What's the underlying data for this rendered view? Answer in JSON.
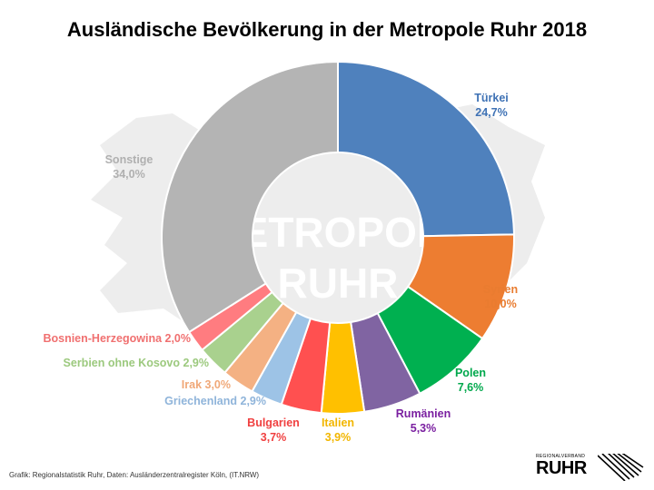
{
  "chart_data": {
    "type": "pie",
    "variant": "donut",
    "title": "Ausländische Bevölkerung in der Metropole Ruhr 2018",
    "center_text": [
      "METROPOLE",
      "RUHR"
    ],
    "unit": "%",
    "slices": [
      {
        "label": "Türkei",
        "value": 24.7,
        "value_text": "24,7%",
        "color": "#4F81BD",
        "label_color": "#3F72B5"
      },
      {
        "label": "Syrien",
        "value": 10.0,
        "value_text": "10,0%",
        "color": "#ED7D31",
        "label_color": "#E97C30"
      },
      {
        "label": "Polen",
        "value": 7.6,
        "value_text": "7,6%",
        "color": "#00B050",
        "label_color": "#00A84C"
      },
      {
        "label": "Rumänien",
        "value": 5.3,
        "value_text": "5,3%",
        "color": "#8064A2",
        "label_color": "#7A1FA0"
      },
      {
        "label": "Italien",
        "value": 3.9,
        "value_text": "3,9%",
        "color": "#FFC000",
        "label_color": "#F2B600"
      },
      {
        "label": "Bulgarien",
        "value": 3.7,
        "value_text": "3,7%",
        "color": "#FF5050",
        "label_color": "#F04040"
      },
      {
        "label": "Griechenland",
        "value": 2.9,
        "value_text": "2,9%",
        "color": "#9DC3E6",
        "label_color": "#8FB4DA"
      },
      {
        "label": "Irak",
        "value": 3.0,
        "value_text": "3,0%",
        "color": "#F4B183",
        "label_color": "#F0A878"
      },
      {
        "label": "Serbien ohne Kosovo",
        "value": 2.9,
        "value_text": "2,9%",
        "color": "#A9D18E",
        "label_color": "#9CC97E"
      },
      {
        "label": "Bosnien-Herzegowina",
        "value": 2.0,
        "value_text": "2,0%",
        "color": "#FF7C80",
        "label_color": "#F07070"
      },
      {
        "label": "Sonstige",
        "value": 34.0,
        "value_text": "34,0%",
        "color": "#B4B4B4",
        "label_color": "#B0B0B0"
      }
    ]
  },
  "footer": {
    "source": "Grafik: Regionalstatistik Ruhr, Daten: Ausländerzentralregister Köln,  (IT.NRW)"
  },
  "logo": {
    "small": "REGIONALVERBAND",
    "big": "RUHR"
  }
}
